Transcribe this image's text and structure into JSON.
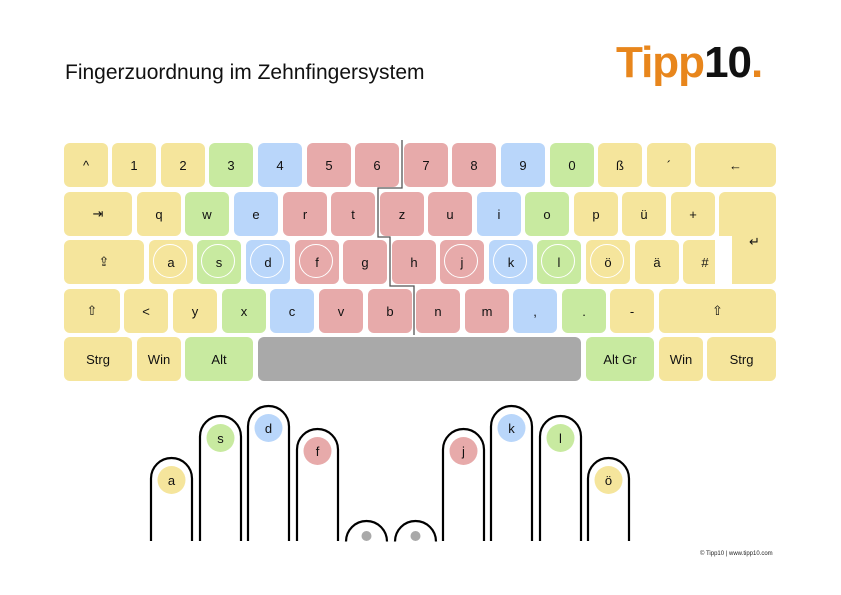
{
  "title": "Fingerzuordnung im Zehnfingersystem",
  "logo": {
    "word": "Tipp",
    "number": "10",
    "dot": "."
  },
  "colors": {
    "pinky": "#f5e59c",
    "ring": "#c8eaa0",
    "middle": "#b9d6fa",
    "index": "#e7aaaa",
    "thumb": "#a9a9a9",
    "brand": "#e8861c"
  },
  "rows": [
    [
      [
        "^",
        "pinky"
      ],
      [
        "1",
        "pinky"
      ],
      [
        "2",
        "pinky"
      ],
      [
        "3",
        "ring"
      ],
      [
        "4",
        "middle"
      ],
      [
        "5",
        "index"
      ],
      [
        "6",
        "index"
      ],
      [
        "7",
        "index"
      ],
      [
        "8",
        "index"
      ],
      [
        "9",
        "middle"
      ],
      [
        "0",
        "ring"
      ],
      [
        "ß",
        "pinky"
      ],
      [
        "´",
        "pinky"
      ],
      [
        "←",
        "pinky"
      ]
    ],
    [
      [
        "⇥",
        "pinky"
      ],
      [
        "q",
        "pinky"
      ],
      [
        "w",
        "ring"
      ],
      [
        "e",
        "middle"
      ],
      [
        "r",
        "index"
      ],
      [
        "t",
        "index"
      ],
      [
        "z",
        "index"
      ],
      [
        "u",
        "index"
      ],
      [
        "i",
        "middle"
      ],
      [
        "o",
        "ring"
      ],
      [
        "p",
        "pinky"
      ],
      [
        "ü",
        "pinky"
      ],
      [
        "+",
        "pinky"
      ],
      [
        "↵",
        "pinky"
      ]
    ],
    [
      [
        "⇪",
        "pinky"
      ],
      [
        "a",
        "pinky"
      ],
      [
        "s",
        "ring"
      ],
      [
        "d",
        "middle"
      ],
      [
        "f",
        "index"
      ],
      [
        "g",
        "index"
      ],
      [
        "h",
        "index"
      ],
      [
        "j",
        "index"
      ],
      [
        "k",
        "middle"
      ],
      [
        "l",
        "ring"
      ],
      [
        "ö",
        "pinky"
      ],
      [
        "ä",
        "pinky"
      ],
      [
        "#",
        "pinky"
      ]
    ],
    [
      [
        "⇧",
        "pinky"
      ],
      [
        "<",
        "pinky"
      ],
      [
        "y",
        "pinky"
      ],
      [
        "x",
        "ring"
      ],
      [
        "c",
        "middle"
      ],
      [
        "v",
        "index"
      ],
      [
        "b",
        "index"
      ],
      [
        "n",
        "index"
      ],
      [
        "m",
        "index"
      ],
      [
        ",",
        "middle"
      ],
      [
        ".",
        "ring"
      ],
      [
        "-",
        "pinky"
      ],
      [
        "⇧",
        "pinky"
      ]
    ],
    [
      [
        "Strg",
        "pinky"
      ],
      [
        "Win",
        "pinky"
      ],
      [
        "Alt",
        "ring"
      ],
      [
        "",
        "thumb"
      ],
      [
        "Alt Gr",
        "ring"
      ],
      [
        "Win",
        "pinky"
      ],
      [
        "Strg",
        "pinky"
      ]
    ]
  ],
  "home_keys": [
    "a",
    "s",
    "d",
    "f",
    "j",
    "k",
    "l",
    "ö"
  ],
  "fingers": [
    [
      "a",
      "pinky"
    ],
    [
      "s",
      "ring"
    ],
    [
      "d",
      "middle"
    ],
    [
      "f",
      "index"
    ],
    [
      "",
      "thumb"
    ],
    [
      "",
      "thumb"
    ],
    [
      "j",
      "index"
    ],
    [
      "k",
      "middle"
    ],
    [
      "l",
      "ring"
    ],
    [
      "ö",
      "pinky"
    ]
  ],
  "footer": "© Tipp10  |  www.tipp10.com"
}
